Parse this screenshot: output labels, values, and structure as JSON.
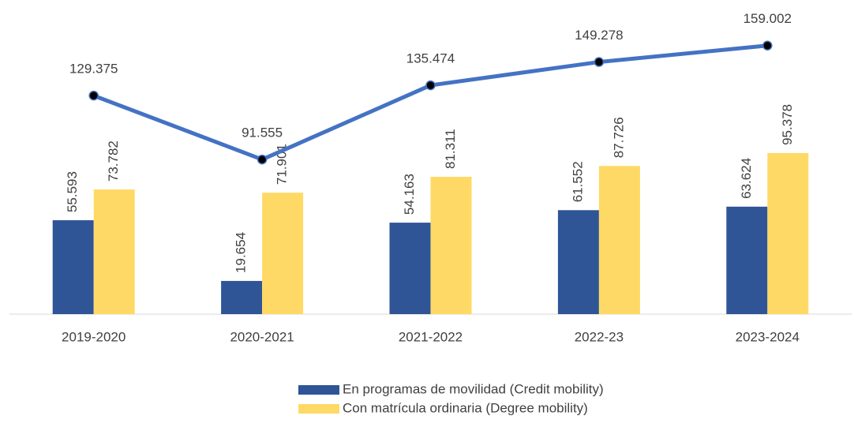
{
  "chart_data": {
    "type": "bar",
    "categories": [
      "2019-2020",
      "2020-2021",
      "2021-2022",
      "2022-23",
      "2023-2024"
    ],
    "series": [
      {
        "name": "En programas de movilidad (Credit mobility)",
        "color": "#2f5597",
        "values": [
          55.593,
          19.654,
          54.163,
          61.552,
          63.624
        ]
      },
      {
        "name": "Con matrícula ordinaria (Degree mobility)",
        "color": "#ffd966",
        "values": [
          73.782,
          71.901,
          81.311,
          87.726,
          95.378
        ]
      },
      {
        "type": "line",
        "color": "#4472c4",
        "marker_color": "#000000",
        "values": [
          129.375,
          91.555,
          135.474,
          149.278,
          159.002
        ]
      }
    ]
  }
}
